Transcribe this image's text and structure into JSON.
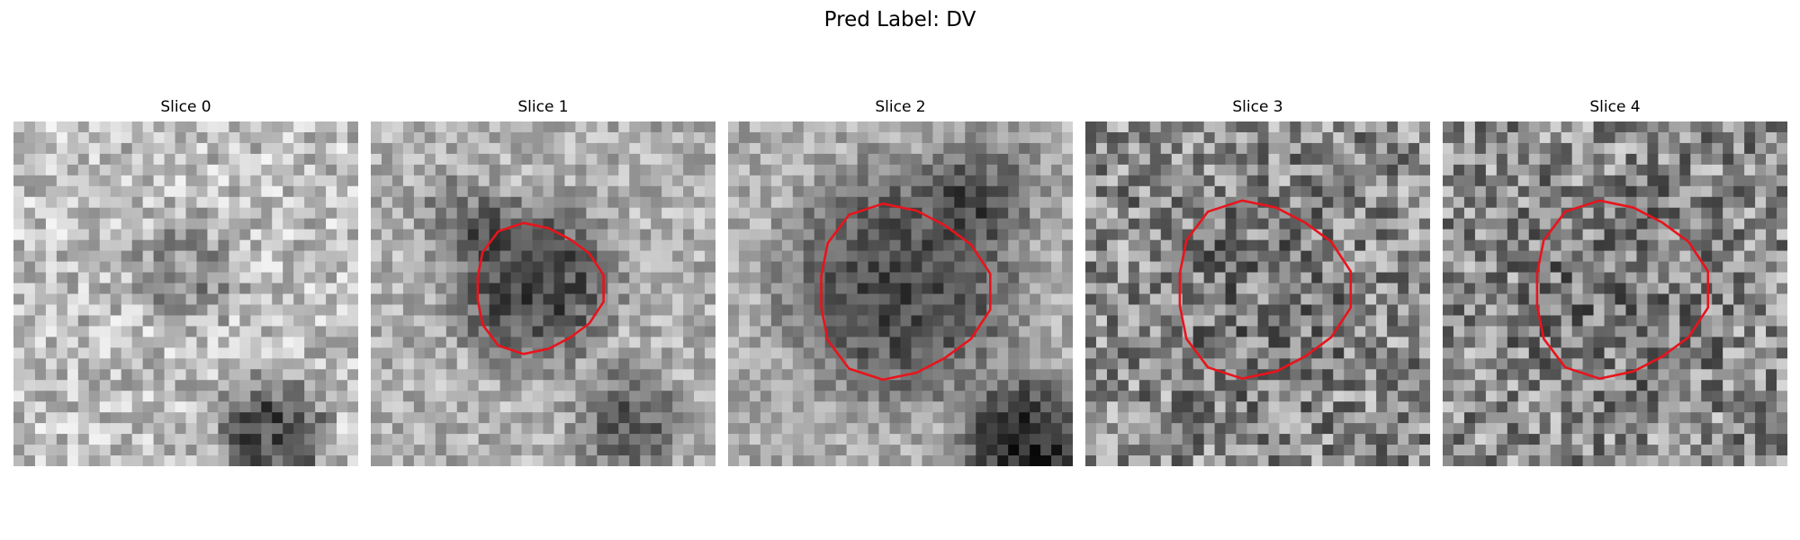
{
  "figure": {
    "suptitle": "Pred Label: DV"
  },
  "panels": [
    {
      "title": "Slice 0"
    },
    {
      "title": "Slice 1"
    },
    {
      "title": "Slice 2"
    },
    {
      "title": "Slice 3"
    },
    {
      "title": "Slice 4"
    }
  ],
  "colors": {
    "contour": "#e8141c",
    "background": "#ffffff"
  }
}
